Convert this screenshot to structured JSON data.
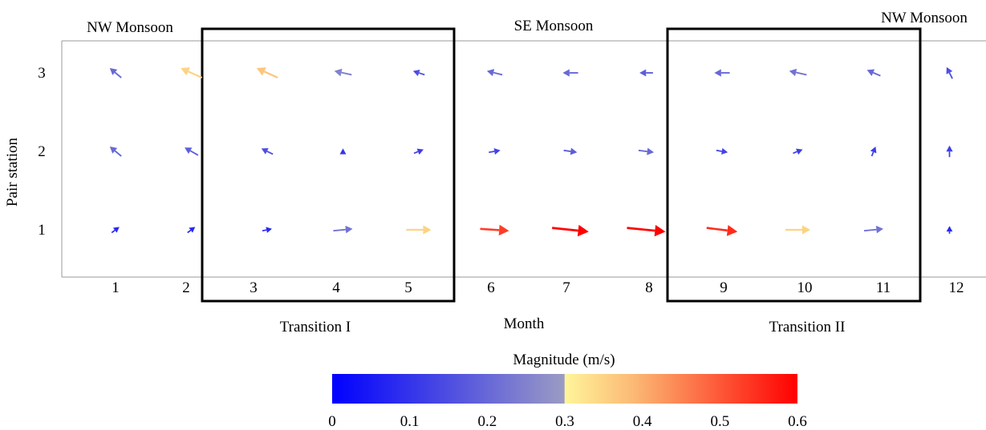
{
  "chart_data": {
    "type": "quiver",
    "xlabel": "Month",
    "ylabel": "Pair station",
    "x_ticks": [
      "1",
      "2",
      "3",
      "4",
      "5",
      "6",
      "7",
      "8",
      "9",
      "10",
      "11",
      "12"
    ],
    "y_ticks": [
      "1",
      "2",
      "3"
    ],
    "season_labels": {
      "nw_left": "NW Monsoon",
      "se": "SE Monsoon",
      "nw_right": "NW Monsoon",
      "transition1": "Transition I",
      "transition2": "Transition II"
    },
    "transition_periods": [
      {
        "name": "Transition I",
        "months": [
          3,
          5
        ]
      },
      {
        "name": "Transition II",
        "months": [
          9,
          11
        ]
      }
    ],
    "colorbar": {
      "label": "Magnitude (m/s)",
      "range": [
        0,
        0.6
      ],
      "ticks": [
        "0",
        "0.1",
        "0.2",
        "0.3",
        "0.4",
        "0.5",
        "0.6"
      ],
      "colors": [
        "#0000ff",
        "#9b9bc4",
        "#fff59a",
        "#fbb874",
        "#ff0000"
      ]
    },
    "vectors": [
      {
        "month": 1,
        "station": 3,
        "u": -0.6,
        "v": 0.5,
        "magnitude": 0.2
      },
      {
        "month": 2,
        "station": 3,
        "u": -1.1,
        "v": 0.5,
        "magnitude": 0.35
      },
      {
        "month": 3,
        "station": 3,
        "u": -1.1,
        "v": 0.5,
        "magnitude": 0.37
      },
      {
        "month": 4,
        "station": 3,
        "u": -0.9,
        "v": 0.2,
        "magnitude": 0.25
      },
      {
        "month": 5,
        "station": 3,
        "u": -0.6,
        "v": 0.2,
        "magnitude": 0.15
      },
      {
        "month": 6,
        "station": 3,
        "u": -0.8,
        "v": 0.2,
        "magnitude": 0.2
      },
      {
        "month": 7,
        "station": 3,
        "u": -0.8,
        "v": 0.0,
        "magnitude": 0.2
      },
      {
        "month": 8,
        "station": 3,
        "u": -0.7,
        "v": 0.0,
        "magnitude": 0.18
      },
      {
        "month": 9,
        "station": 3,
        "u": -0.8,
        "v": 0.0,
        "magnitude": 0.2
      },
      {
        "month": 10,
        "station": 3,
        "u": -0.9,
        "v": 0.2,
        "magnitude": 0.22
      },
      {
        "month": 11,
        "station": 3,
        "u": -0.7,
        "v": 0.3,
        "magnitude": 0.2
      },
      {
        "month": 12,
        "station": 3,
        "u": -0.3,
        "v": 0.6,
        "magnitude": 0.15
      },
      {
        "month": 1,
        "station": 2,
        "u": -0.6,
        "v": 0.5,
        "magnitude": 0.2
      },
      {
        "month": 2,
        "station": 2,
        "u": -0.7,
        "v": 0.4,
        "magnitude": 0.18
      },
      {
        "month": 3,
        "station": 2,
        "u": -0.6,
        "v": 0.3,
        "magnitude": 0.15
      },
      {
        "month": 4,
        "station": 2,
        "u": 0.0,
        "v": 0.3,
        "magnitude": 0.1
      },
      {
        "month": 5,
        "station": 2,
        "u": 0.5,
        "v": 0.2,
        "magnitude": 0.12
      },
      {
        "month": 6,
        "station": 2,
        "u": 0.6,
        "v": 0.1,
        "magnitude": 0.13
      },
      {
        "month": 7,
        "station": 2,
        "u": 0.7,
        "v": -0.1,
        "magnitude": 0.18
      },
      {
        "month": 8,
        "station": 2,
        "u": 0.8,
        "v": -0.1,
        "magnitude": 0.2
      },
      {
        "month": 9,
        "station": 2,
        "u": 0.6,
        "v": -0.1,
        "magnitude": 0.13
      },
      {
        "month": 10,
        "station": 2,
        "u": 0.5,
        "v": 0.2,
        "magnitude": 0.12
      },
      {
        "month": 11,
        "station": 2,
        "u": 0.2,
        "v": 0.5,
        "magnitude": 0.12
      },
      {
        "month": 12,
        "station": 2,
        "u": 0.0,
        "v": 0.6,
        "magnitude": 0.12
      },
      {
        "month": 1,
        "station": 1,
        "u": 0.4,
        "v": 0.3,
        "magnitude": 0.08
      },
      {
        "month": 2,
        "station": 1,
        "u": 0.4,
        "v": 0.3,
        "magnitude": 0.08
      },
      {
        "month": 3,
        "station": 1,
        "u": 0.5,
        "v": 0.1,
        "magnitude": 0.08
      },
      {
        "month": 4,
        "station": 1,
        "u": 1.0,
        "v": 0.1,
        "magnitude": 0.22
      },
      {
        "month": 5,
        "station": 1,
        "u": 1.3,
        "v": 0.0,
        "magnitude": 0.35
      },
      {
        "month": 6,
        "station": 1,
        "u": 1.5,
        "v": -0.1,
        "magnitude": 0.53
      },
      {
        "month": 7,
        "station": 1,
        "u": 1.9,
        "v": -0.2,
        "magnitude": 0.6
      },
      {
        "month": 8,
        "station": 1,
        "u": 2.0,
        "v": -0.2,
        "magnitude": 0.6
      },
      {
        "month": 9,
        "station": 1,
        "u": 1.6,
        "v": -0.2,
        "magnitude": 0.55
      },
      {
        "month": 10,
        "station": 1,
        "u": 1.3,
        "v": 0.0,
        "magnitude": 0.35
      },
      {
        "month": 11,
        "station": 1,
        "u": 1.0,
        "v": 0.1,
        "magnitude": 0.22
      },
      {
        "month": 12,
        "station": 1,
        "u": 0.0,
        "v": 0.4,
        "magnitude": 0.08
      }
    ]
  }
}
